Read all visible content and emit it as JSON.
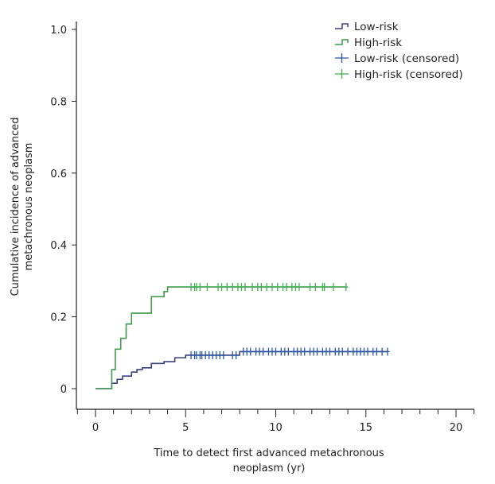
{
  "chart_data": {
    "type": "line",
    "subtype": "step (cumulative incidence)",
    "title": "",
    "xlabel": [
      "Time to detect first advanced metachronous",
      "neoplasm (yr)"
    ],
    "ylabel": [
      "Cumulative incidence of advanced",
      "metachronous neoplasm"
    ],
    "xlim": [
      -1,
      21
    ],
    "ylim": [
      0,
      1.0
    ],
    "x_ticks": [
      0,
      5,
      10,
      15,
      20
    ],
    "x_tick_labels": [
      "0",
      "5",
      "10",
      "15",
      "20"
    ],
    "x_minor_tick_step": 1,
    "y_ticks": [
      0,
      0.2,
      0.4,
      0.6,
      0.8,
      1.0
    ],
    "y_tick_labels": [
      "0",
      "0.2",
      "0.4",
      "0.6",
      "0.8",
      "1.0"
    ],
    "grid": false,
    "legend_position": "top-right",
    "legend": [
      {
        "label": "Low-risk",
        "symbol": "step",
        "color": "#3b3f7c"
      },
      {
        "label": "High-risk",
        "symbol": "step",
        "color": "#3f9a4c"
      },
      {
        "label": "Low-risk (censored)",
        "symbol": "plus",
        "color": "#2a56a8"
      },
      {
        "label": "High-risk (censored)",
        "symbol": "plus",
        "color": "#3fae4f"
      }
    ],
    "series": [
      {
        "name": "Low-risk",
        "color": "#3b3f7c",
        "censor_color": "#2a56a8",
        "steps": [
          [
            0,
            0
          ],
          [
            0.9,
            0.015
          ],
          [
            1.2,
            0.026
          ],
          [
            1.5,
            0.035
          ],
          [
            2.0,
            0.046
          ],
          [
            2.3,
            0.053
          ],
          [
            2.6,
            0.058
          ],
          [
            3.1,
            0.07
          ],
          [
            3.8,
            0.075
          ],
          [
            4.4,
            0.086
          ],
          [
            5.0,
            0.093
          ],
          [
            8.0,
            0.103
          ],
          [
            16.2,
            0.103
          ]
        ],
        "censored": [
          5.3,
          5.5,
          5.6,
          5.8,
          5.9,
          6.1,
          6.3,
          6.5,
          6.7,
          6.9,
          7.1,
          7.6,
          7.8,
          8.2,
          8.4,
          8.6,
          8.9,
          9.1,
          9.3,
          9.6,
          9.8,
          10.0,
          10.3,
          10.5,
          10.7,
          11.0,
          11.2,
          11.4,
          11.6,
          11.9,
          12.1,
          12.3,
          12.6,
          12.8,
          13.0,
          13.3,
          13.5,
          13.7,
          14.0,
          14.3,
          14.5,
          14.7,
          14.9,
          15.1,
          15.4,
          15.6,
          15.9,
          16.2
        ]
      },
      {
        "name": "High-risk",
        "color": "#3f9a4c",
        "censor_color": "#3fae4f",
        "steps": [
          [
            0,
            0
          ],
          [
            0.9,
            0.053
          ],
          [
            1.1,
            0.11
          ],
          [
            1.4,
            0.14
          ],
          [
            1.7,
            0.18
          ],
          [
            2.0,
            0.21
          ],
          [
            3.1,
            0.256
          ],
          [
            3.8,
            0.27
          ],
          [
            4.0,
            0.283
          ],
          [
            13.9,
            0.283
          ]
        ],
        "censored": [
          5.3,
          5.5,
          5.6,
          5.8,
          6.2,
          6.8,
          7.0,
          7.3,
          7.6,
          7.9,
          8.1,
          8.3,
          8.7,
          9.0,
          9.2,
          9.5,
          9.8,
          10.1,
          10.4,
          10.6,
          10.9,
          11.1,
          11.3,
          11.9,
          12.2,
          12.6,
          12.7,
          13.2,
          13.9
        ]
      }
    ]
  }
}
